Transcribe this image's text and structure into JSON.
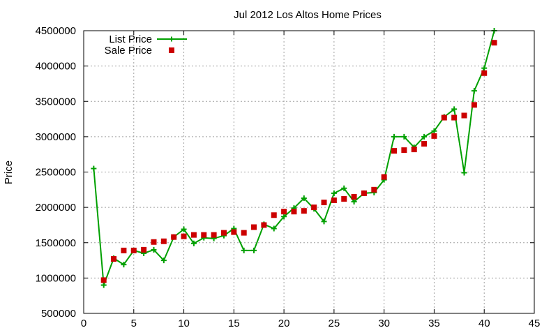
{
  "chart_data": {
    "type": "line",
    "title": "Jul 2012 Los Altos Home Prices",
    "xlabel": "",
    "ylabel": "Price",
    "xlim": [
      0,
      45
    ],
    "ylim": [
      500000,
      4500000
    ],
    "xticks": [
      0,
      5,
      10,
      15,
      20,
      25,
      30,
      35,
      40,
      45
    ],
    "yticks": [
      500000,
      1000000,
      1500000,
      2000000,
      2500000,
      3000000,
      3500000,
      4000000,
      4500000
    ],
    "grid": true,
    "legend_position": "top-left",
    "colors": {
      "list": "#00a000",
      "sale": "#cc0000"
    },
    "series": [
      {
        "name": "List Price",
        "style": "linespoints",
        "marker": "plus",
        "x": [
          1,
          2,
          3,
          4,
          5,
          6,
          7,
          8,
          9,
          10,
          11,
          12,
          13,
          14,
          15,
          16,
          17,
          18,
          19,
          20,
          21,
          22,
          23,
          24,
          25,
          26,
          27,
          28,
          29,
          30,
          31,
          32,
          33,
          34,
          35,
          36,
          37,
          38,
          39,
          40,
          41
        ],
        "y": [
          2550000,
          900000,
          1280000,
          1190000,
          1390000,
          1350000,
          1400000,
          1250000,
          1580000,
          1690000,
          1490000,
          1570000,
          1560000,
          1600000,
          1700000,
          1390000,
          1390000,
          1760000,
          1700000,
          1870000,
          1990000,
          2130000,
          1980000,
          1800000,
          2200000,
          2270000,
          2080000,
          2200000,
          2210000,
          2390000,
          3000000,
          3000000,
          2850000,
          3000000,
          3080000,
          3280000,
          3390000,
          2490000,
          3650000,
          3970000,
          4500000
        ]
      },
      {
        "name": "Sale Price",
        "style": "points",
        "marker": "square",
        "x": [
          2,
          3,
          4,
          5,
          6,
          7,
          8,
          9,
          10,
          11,
          12,
          13,
          14,
          15,
          16,
          17,
          18,
          19,
          20,
          21,
          22,
          23,
          24,
          25,
          26,
          27,
          28,
          29,
          30,
          31,
          32,
          33,
          34,
          35,
          36,
          37,
          38,
          39,
          40,
          41
        ],
        "y": [
          970000,
          1270000,
          1390000,
          1390000,
          1400000,
          1510000,
          1520000,
          1580000,
          1590000,
          1610000,
          1610000,
          1610000,
          1640000,
          1650000,
          1640000,
          1720000,
          1750000,
          1890000,
          1940000,
          1940000,
          1950000,
          2000000,
          2070000,
          2100000,
          2120000,
          2150000,
          2200000,
          2250000,
          2430000,
          2800000,
          2810000,
          2820000,
          2900000,
          3010000,
          3270000,
          3270000,
          3300000,
          3450000,
          3900000,
          4330000
        ]
      }
    ]
  }
}
